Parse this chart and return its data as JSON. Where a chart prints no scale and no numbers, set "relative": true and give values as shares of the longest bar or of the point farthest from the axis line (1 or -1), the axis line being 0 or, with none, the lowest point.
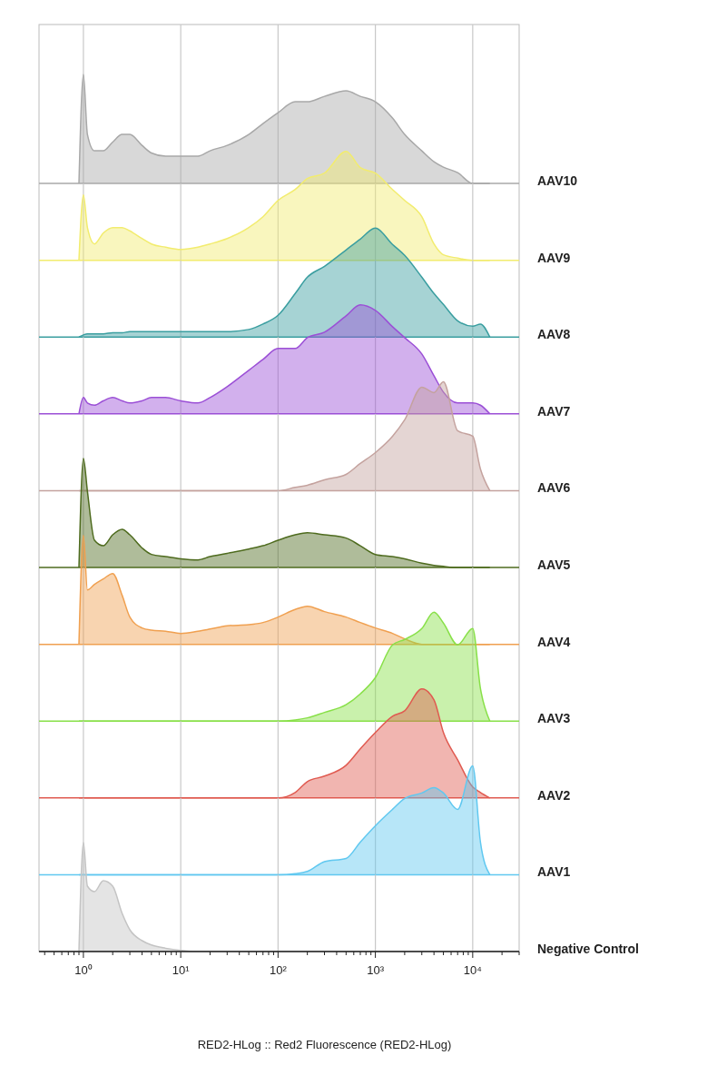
{
  "chart_data": [
    {
      "type": "area",
      "relative": true,
      "log": "x",
      "grid": "x",
      "tick_labels": false,
      "xlim": [
        0.35,
        30000
      ],
      "xticks": [
        1,
        10,
        100,
        1000,
        10000
      ],
      "x": [
        0.9,
        1,
        1.1,
        1.3,
        1.6,
        2,
        2.5,
        3,
        4,
        5,
        7,
        10,
        15,
        20,
        30,
        50,
        70,
        100,
        150,
        200,
        300,
        500,
        700,
        1000,
        1500,
        2000,
        3000,
        4000,
        5000,
        7000,
        10000,
        12000,
        15000
      ],
      "series": [
        {
          "name": "AAV10",
          "color": "#a8a8a8",
          "values": [
            0,
            1,
            0.45,
            0.3,
            0.3,
            0.38,
            0.45,
            0.45,
            0.35,
            0.28,
            0.25,
            0.25,
            0.25,
            0.3,
            0.35,
            0.45,
            0.55,
            0.65,
            0.75,
            0.75,
            0.8,
            0.85,
            0.8,
            0.75,
            0.6,
            0.45,
            0.3,
            0.2,
            0.15,
            0.1,
            0,
            0,
            0
          ]
        }
      ]
    },
    {
      "type": "area",
      "relative": true,
      "log": "x",
      "grid": "x",
      "tick_labels": false,
      "xlim": [
        0.35,
        30000
      ],
      "xticks": [
        1,
        10,
        100,
        1000,
        10000
      ],
      "x": [
        0.9,
        1,
        1.1,
        1.3,
        1.6,
        2,
        2.5,
        3,
        4,
        5,
        7,
        10,
        15,
        20,
        30,
        50,
        70,
        100,
        150,
        200,
        300,
        500,
        700,
        1000,
        1500,
        2000,
        3000,
        4000,
        5000,
        7000,
        10000,
        12000,
        15000
      ],
      "series": [
        {
          "name": "AAV9",
          "color": "#f2ec6e",
          "values": [
            0,
            0.6,
            0.3,
            0.15,
            0.25,
            0.3,
            0.3,
            0.27,
            0.2,
            0.15,
            0.12,
            0.1,
            0.12,
            0.15,
            0.2,
            0.3,
            0.4,
            0.55,
            0.65,
            0.75,
            0.8,
            1,
            0.85,
            0.8,
            0.65,
            0.55,
            0.4,
            0.15,
            0.05,
            0.02,
            0,
            0,
            0
          ]
        }
      ]
    },
    {
      "type": "area",
      "relative": true,
      "log": "x",
      "grid": "x",
      "tick_labels": false,
      "xlim": [
        0.35,
        30000
      ],
      "xticks": [
        1,
        10,
        100,
        1000,
        10000
      ],
      "x": [
        0.9,
        1,
        1.1,
        1.3,
        1.6,
        2,
        2.5,
        3,
        4,
        5,
        7,
        10,
        15,
        20,
        30,
        50,
        70,
        100,
        150,
        200,
        300,
        500,
        700,
        1000,
        1500,
        2000,
        3000,
        4000,
        5000,
        7000,
        10000,
        12000,
        15000
      ],
      "series": [
        {
          "name": "AAV8",
          "color": "#3a9ea0",
          "values": [
            0,
            0.02,
            0.03,
            0.03,
            0.03,
            0.04,
            0.04,
            0.05,
            0.05,
            0.05,
            0.05,
            0.05,
            0.05,
            0.05,
            0.05,
            0.07,
            0.12,
            0.2,
            0.4,
            0.55,
            0.65,
            0.8,
            0.9,
            1,
            0.85,
            0.75,
            0.55,
            0.4,
            0.3,
            0.15,
            0.1,
            0.12,
            0
          ]
        }
      ]
    },
    {
      "type": "area",
      "relative": true,
      "log": "x",
      "grid": "x",
      "tick_labels": false,
      "xlim": [
        0.35,
        30000
      ],
      "xticks": [
        1,
        10,
        100,
        1000,
        10000
      ],
      "x": [
        0.9,
        1,
        1.1,
        1.3,
        1.6,
        2,
        2.5,
        3,
        4,
        5,
        7,
        10,
        15,
        20,
        30,
        50,
        70,
        100,
        150,
        200,
        300,
        500,
        700,
        1000,
        1500,
        2000,
        3000,
        4000,
        5000,
        7000,
        10000,
        12000,
        15000
      ],
      "series": [
        {
          "name": "AAV7",
          "color": "#9b4fd6",
          "values": [
            0,
            0.15,
            0.1,
            0.08,
            0.12,
            0.15,
            0.12,
            0.1,
            0.12,
            0.15,
            0.15,
            0.12,
            0.1,
            0.15,
            0.25,
            0.4,
            0.5,
            0.6,
            0.6,
            0.7,
            0.75,
            0.9,
            1,
            0.95,
            0.8,
            0.7,
            0.55,
            0.35,
            0.2,
            0.1,
            0.1,
            0.08,
            0
          ]
        }
      ]
    },
    {
      "type": "area",
      "relative": true,
      "log": "x",
      "grid": "x",
      "tick_labels": false,
      "xlim": [
        0.35,
        30000
      ],
      "xticks": [
        1,
        10,
        100,
        1000,
        10000
      ],
      "x": [
        0.9,
        1,
        1.1,
        1.3,
        1.6,
        2,
        2.5,
        3,
        4,
        5,
        7,
        10,
        15,
        20,
        30,
        50,
        70,
        100,
        150,
        200,
        300,
        500,
        700,
        1000,
        1500,
        2000,
        3000,
        4000,
        5000,
        7000,
        10000,
        12000,
        15000
      ],
      "series": [
        {
          "name": "AAV6",
          "color": "#c4a29e",
          "values": [
            0,
            0,
            0,
            0,
            0,
            0,
            0,
            0,
            0,
            0,
            0,
            0,
            0,
            0,
            0,
            0,
            0,
            0,
            0.03,
            0.05,
            0.1,
            0.15,
            0.25,
            0.35,
            0.5,
            0.65,
            0.95,
            0.9,
            1,
            0.55,
            0.5,
            0.2,
            0
          ]
        }
      ]
    },
    {
      "type": "area",
      "relative": true,
      "log": "x",
      "grid": "x",
      "tick_labels": false,
      "xlim": [
        0.35,
        30000
      ],
      "xticks": [
        1,
        10,
        100,
        1000,
        10000
      ],
      "x": [
        0.9,
        1,
        1.1,
        1.3,
        1.6,
        2,
        2.5,
        3,
        4,
        5,
        7,
        10,
        15,
        20,
        30,
        50,
        70,
        100,
        150,
        200,
        300,
        500,
        700,
        1000,
        1500,
        2000,
        3000,
        4000,
        5000,
        7000,
        10000,
        12000,
        15000
      ],
      "series": [
        {
          "name": "AAV5",
          "color": "#4e6b1e",
          "values": [
            0,
            1,
            0.7,
            0.25,
            0.2,
            0.3,
            0.35,
            0.3,
            0.18,
            0.12,
            0.1,
            0.08,
            0.07,
            0.1,
            0.13,
            0.17,
            0.2,
            0.25,
            0.3,
            0.32,
            0.3,
            0.27,
            0.2,
            0.12,
            0.1,
            0.08,
            0.04,
            0.02,
            0.01,
            0,
            0,
            0,
            0
          ]
        }
      ]
    },
    {
      "type": "area",
      "relative": true,
      "log": "x",
      "grid": "x",
      "tick_labels": false,
      "xlim": [
        0.35,
        30000
      ],
      "xticks": [
        1,
        10,
        100,
        1000,
        10000
      ],
      "x": [
        0.9,
        1,
        1.1,
        1.3,
        1.6,
        2,
        2.5,
        3,
        4,
        5,
        7,
        10,
        15,
        20,
        30,
        50,
        70,
        100,
        150,
        200,
        300,
        500,
        700,
        1000,
        1500,
        2000,
        3000,
        4000,
        5000,
        7000,
        10000,
        12000,
        15000
      ],
      "series": [
        {
          "name": "AAV4",
          "color": "#f0a050",
          "values": [
            0,
            1,
            0.5,
            0.55,
            0.6,
            0.65,
            0.45,
            0.25,
            0.15,
            0.13,
            0.12,
            0.1,
            0.12,
            0.14,
            0.17,
            0.18,
            0.2,
            0.25,
            0.32,
            0.35,
            0.3,
            0.25,
            0.2,
            0.15,
            0.1,
            0.05,
            0,
            0,
            0,
            0,
            0,
            0,
            0
          ]
        }
      ]
    },
    {
      "type": "area",
      "relative": true,
      "log": "x",
      "grid": "x",
      "tick_labels": false,
      "xlim": [
        0.35,
        30000
      ],
      "xticks": [
        1,
        10,
        100,
        1000,
        10000
      ],
      "x": [
        0.9,
        1,
        1.1,
        1.3,
        1.6,
        2,
        2.5,
        3,
        4,
        5,
        7,
        10,
        15,
        20,
        30,
        50,
        70,
        100,
        150,
        200,
        300,
        500,
        700,
        1000,
        1500,
        2000,
        3000,
        4000,
        5000,
        7000,
        10000,
        12000,
        15000
      ],
      "series": [
        {
          "name": "AAV3",
          "color": "#88e048",
          "values": [
            0,
            0,
            0,
            0,
            0,
            0,
            0,
            0,
            0,
            0,
            0,
            0,
            0,
            0,
            0,
            0,
            0,
            0,
            0.01,
            0.03,
            0.08,
            0.15,
            0.25,
            0.4,
            0.7,
            0.75,
            0.85,
            1,
            0.9,
            0.7,
            0.85,
            0.3,
            0
          ]
        }
      ]
    },
    {
      "type": "area",
      "relative": true,
      "log": "x",
      "grid": "x",
      "tick_labels": false,
      "xlim": [
        0.35,
        30000
      ],
      "xticks": [
        1,
        10,
        100,
        1000,
        10000
      ],
      "x": [
        0.9,
        1,
        1.1,
        1.3,
        1.6,
        2,
        2.5,
        3,
        4,
        5,
        7,
        10,
        15,
        20,
        30,
        50,
        70,
        100,
        150,
        200,
        300,
        500,
        700,
        1000,
        1500,
        2000,
        3000,
        4000,
        5000,
        7000,
        10000,
        12000,
        15000
      ],
      "series": [
        {
          "name": "AAV2",
          "color": "#e05a50",
          "values": [
            0,
            0,
            0,
            0,
            0,
            0,
            0,
            0,
            0,
            0,
            0,
            0,
            0,
            0,
            0,
            0,
            0,
            0,
            0.05,
            0.15,
            0.2,
            0.3,
            0.45,
            0.6,
            0.75,
            0.8,
            1,
            0.9,
            0.6,
            0.35,
            0.1,
            0.05,
            0
          ]
        }
      ]
    },
    {
      "type": "area",
      "relative": true,
      "log": "x",
      "grid": "x",
      "tick_labels": false,
      "xlim": [
        0.35,
        30000
      ],
      "xticks": [
        1,
        10,
        100,
        1000,
        10000
      ],
      "x": [
        0.9,
        1,
        1.1,
        1.3,
        1.6,
        2,
        2.5,
        3,
        4,
        5,
        7,
        10,
        15,
        20,
        30,
        50,
        70,
        100,
        150,
        200,
        300,
        500,
        700,
        1000,
        1500,
        2000,
        3000,
        4000,
        5000,
        7000,
        10000,
        12000,
        15000
      ],
      "series": [
        {
          "name": "AAV1",
          "color": "#60c8f0",
          "values": [
            0,
            0,
            0,
            0,
            0,
            0,
            0,
            0,
            0,
            0,
            0,
            0,
            0,
            0,
            0,
            0,
            0,
            0,
            0.01,
            0.03,
            0.12,
            0.15,
            0.3,
            0.45,
            0.6,
            0.7,
            0.75,
            0.8,
            0.75,
            0.6,
            1,
            0.3,
            0
          ]
        }
      ]
    },
    {
      "type": "area",
      "relative": true,
      "log": "x",
      "grid": "x",
      "tick_labels": "x",
      "xlabel": "RED2-HLog :: Red2 Fluorescence (RED2-HLog)",
      "xlim": [
        0.35,
        30000
      ],
      "xticks": [
        {
          "value": 0.4,
          "label": null
        },
        {
          "value": 0.5,
          "label": null
        },
        {
          "value": 0.6,
          "label": null
        },
        {
          "value": 0.7,
          "label": null
        },
        {
          "value": 0.8,
          "label": null
        },
        {
          "value": 0.9,
          "label": null
        },
        {
          "value": 1,
          "label": "10⁰"
        },
        {
          "value": 2,
          "label": null
        },
        {
          "value": 3,
          "label": null
        },
        {
          "value": 4,
          "label": null
        },
        {
          "value": 5,
          "label": null
        },
        {
          "value": 6,
          "label": null
        },
        {
          "value": 7,
          "label": null
        },
        {
          "value": 8,
          "label": null
        },
        {
          "value": 9,
          "label": null
        },
        {
          "value": 10,
          "label": "10¹"
        },
        {
          "value": 20,
          "label": null
        },
        {
          "value": 30,
          "label": null
        },
        {
          "value": 40,
          "label": null
        },
        {
          "value": 50,
          "label": null
        },
        {
          "value": 60,
          "label": null
        },
        {
          "value": 70,
          "label": null
        },
        {
          "value": 80,
          "label": null
        },
        {
          "value": 90,
          "label": null
        },
        {
          "value": 100,
          "label": "10²"
        },
        {
          "value": 200,
          "label": null
        },
        {
          "value": 300,
          "label": null
        },
        {
          "value": 400,
          "label": null
        },
        {
          "value": 500,
          "label": null
        },
        {
          "value": 600,
          "label": null
        },
        {
          "value": 700,
          "label": null
        },
        {
          "value": 800,
          "label": null
        },
        {
          "value": 900,
          "label": null
        },
        {
          "value": 1000,
          "label": "10³"
        },
        {
          "value": 2000,
          "label": null
        },
        {
          "value": 3000,
          "label": null
        },
        {
          "value": 4000,
          "label": null
        },
        {
          "value": 5000,
          "label": null
        },
        {
          "value": 6000,
          "label": null
        },
        {
          "value": 7000,
          "label": null
        },
        {
          "value": 8000,
          "label": null
        },
        {
          "value": 9000,
          "label": null
        },
        {
          "value": 10000,
          "label": "10⁴"
        },
        {
          "value": 20000,
          "label": null
        },
        {
          "value": 30000,
          "label": null
        }
      ],
      "x": [
        0.9,
        1,
        1.1,
        1.3,
        1.6,
        2,
        2.5,
        3,
        4,
        5,
        7,
        10,
        15,
        20,
        30,
        50,
        70,
        100,
        150,
        200,
        300,
        500,
        700,
        1000,
        1500,
        2000,
        3000,
        4000,
        5000,
        7000,
        10000,
        12000,
        15000
      ],
      "series": [
        {
          "name": "Negative Control",
          "color": "#c4c4c4",
          "values": [
            0,
            1,
            0.6,
            0.55,
            0.65,
            0.6,
            0.35,
            0.2,
            0.1,
            0.06,
            0.03,
            0.01,
            0,
            0,
            0,
            0,
            0,
            0,
            0,
            0,
            0,
            0,
            0,
            0,
            0,
            0,
            0,
            0,
            0,
            0,
            0,
            0,
            0
          ]
        }
      ]
    }
  ]
}
